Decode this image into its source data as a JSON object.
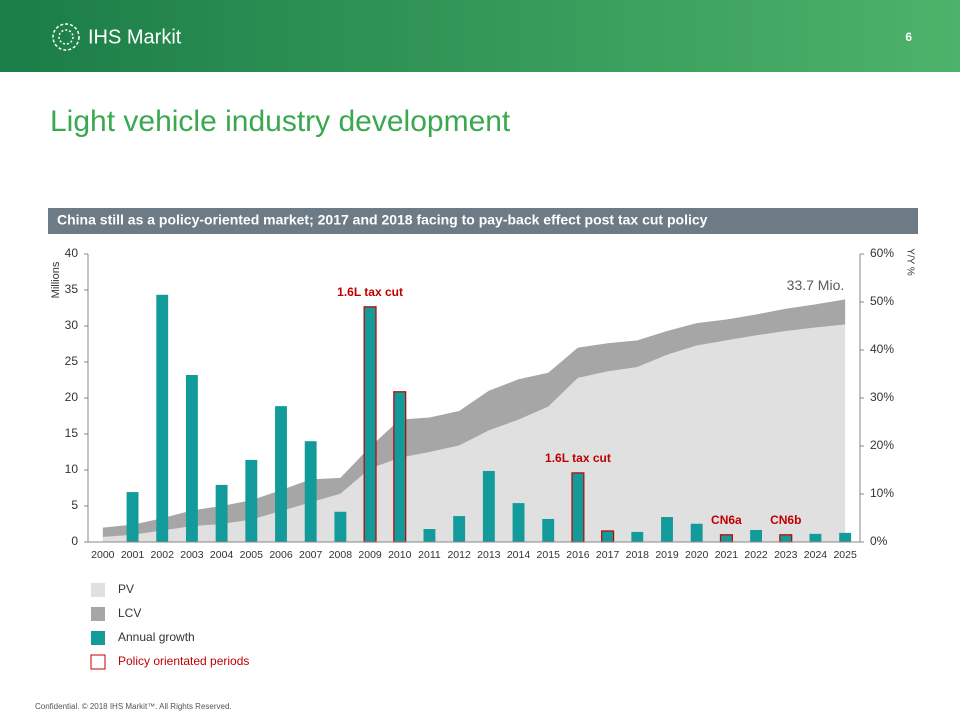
{
  "header": {
    "logo": "IHS Markit",
    "page": "6"
  },
  "title": "Light vehicle industry development",
  "banner": "China still as a policy-oriented market; 2017 and 2018 facing to pay-back effect post tax cut policy",
  "footer": "Confidential. © 2018 IHS Markit™. All Rights Reserved.",
  "chart_data": {
    "type": "bar",
    "categories": [
      "2000",
      "2001",
      "2002",
      "2003",
      "2004",
      "2005",
      "2006",
      "2007",
      "2008",
      "2009",
      "2010",
      "2011",
      "2012",
      "2013",
      "2014",
      "2015",
      "2016",
      "2017",
      "2018",
      "2019",
      "2020",
      "2021",
      "2022",
      "2023",
      "2024",
      "2025"
    ],
    "series": [
      {
        "name": "PV",
        "type": "area",
        "color": "#e0e0e0",
        "values": [
          0.7,
          1.0,
          1.6,
          2.2,
          2.5,
          3.1,
          4.3,
          5.5,
          6.7,
          10.2,
          11.7,
          12.5,
          13.4,
          15.5,
          17.0,
          18.8,
          22.8,
          23.7,
          24.3,
          26.0,
          27.3,
          28.0,
          28.7,
          29.3,
          29.8,
          30.2
        ]
      },
      {
        "name": "LCV",
        "type": "area",
        "color": "#a6a6a6",
        "values": [
          1.3,
          1.4,
          1.7,
          2.2,
          2.5,
          2.7,
          2.9,
          3.2,
          2.2,
          3.0,
          5.3,
          4.8,
          4.8,
          5.5,
          5.6,
          4.7,
          4.2,
          3.9,
          3.7,
          3.3,
          3.1,
          2.9,
          2.9,
          3.1,
          3.2,
          3.5
        ]
      },
      {
        "name": "Annual growth",
        "type": "bar",
        "axis": "y2",
        "color": "#139a9a",
        "values": [
          null,
          10.4,
          51.5,
          34.8,
          11.9,
          17.1,
          28.3,
          21.0,
          6.3,
          49.0,
          31.3,
          2.7,
          5.4,
          14.8,
          8.1,
          4.8,
          14.4,
          2.3,
          2.1,
          5.2,
          3.8,
          1.5,
          2.5,
          1.5,
          1.7,
          1.9
        ]
      }
    ],
    "policy": [
      false,
      false,
      false,
      false,
      false,
      false,
      false,
      false,
      false,
      true,
      true,
      false,
      false,
      false,
      false,
      false,
      true,
      true,
      false,
      false,
      false,
      true,
      false,
      true,
      false,
      false
    ],
    "policy_color": "#c00000",
    "policy_legend": "Policy orientated periods",
    "ylabel": "Millions",
    "y2label": "Y/Y %",
    "ylim": [
      0,
      40
    ],
    "yticks": [
      0,
      5,
      10,
      15,
      20,
      25,
      30,
      35,
      40
    ],
    "y2lim": [
      0,
      60
    ],
    "y2ticks": [
      {
        "value": 0,
        "label": "0%"
      },
      {
        "value": 10,
        "label": "10%"
      },
      {
        "value": 20,
        "label": "20%"
      },
      {
        "value": 30,
        "label": "30%"
      },
      {
        "value": 40,
        "label": "40%"
      },
      {
        "value": 50,
        "label": "50%"
      },
      {
        "value": 60,
        "label": "60%"
      }
    ],
    "annotations": [
      {
        "text": "1.6L tax cut",
        "x": "2009",
        "anchor": "bar",
        "color": "#c00000"
      },
      {
        "text": "1.6L tax cut",
        "x": "2016",
        "anchor": "bar",
        "color": "#c00000"
      },
      {
        "text": "CN6a",
        "x": "2021",
        "anchor": "bar",
        "color": "#c00000"
      },
      {
        "text": "CN6b",
        "x": "2023",
        "anchor": "bar",
        "color": "#c00000"
      },
      {
        "text": "33.7 Mio.",
        "x": "2024",
        "anchor": "area",
        "color": "#595959"
      }
    ]
  }
}
